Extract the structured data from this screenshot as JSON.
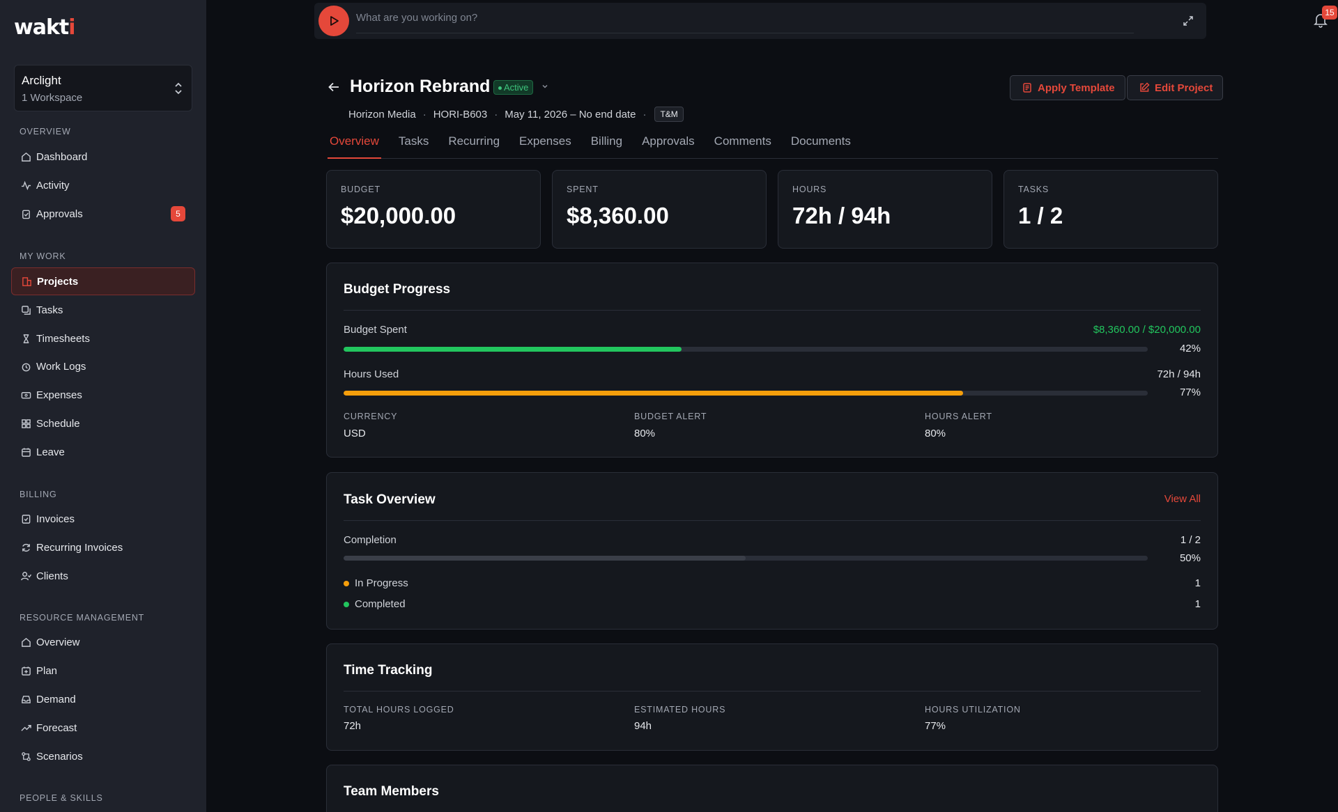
{
  "sidebar": {
    "logo": "wakti",
    "workspace": {
      "name": "Arclight",
      "sub": "1 Workspace"
    },
    "sections": [
      {
        "label": "OVERVIEW"
      },
      {
        "label": "MY WORK"
      },
      {
        "label": "BILLING"
      },
      {
        "label": "RESOURCE MANAGEMENT"
      },
      {
        "label": "PEOPLE & SKILLS"
      }
    ],
    "items": [
      {
        "label": "Dashboard",
        "icon": "home-icon"
      },
      {
        "label": "Activity",
        "icon": "activity-icon"
      },
      {
        "label": "Approvals",
        "icon": "clipboard-check-icon",
        "badge": "5"
      },
      {
        "label": "Projects",
        "icon": "folder-icon",
        "active": true
      },
      {
        "label": "Tasks",
        "icon": "tasks-icon"
      },
      {
        "label": "Timesheets",
        "icon": "hourglass-icon"
      },
      {
        "label": "Work Logs",
        "icon": "clock-icon"
      },
      {
        "label": "Expenses",
        "icon": "receipt-icon"
      },
      {
        "label": "Schedule",
        "icon": "grid-icon"
      },
      {
        "label": "Leave",
        "icon": "calendar-icon"
      },
      {
        "label": "Invoices",
        "icon": "invoice-icon"
      },
      {
        "label": "Recurring Invoices",
        "icon": "refresh-icon"
      },
      {
        "label": "Clients",
        "icon": "users-icon"
      },
      {
        "label": "Overview",
        "icon": "home-icon"
      },
      {
        "label": "Plan",
        "icon": "calendar-plus-icon"
      },
      {
        "label": "Demand",
        "icon": "inbox-icon"
      },
      {
        "label": "Forecast",
        "icon": "trend-up-icon"
      },
      {
        "label": "Scenarios",
        "icon": "branches-icon"
      }
    ]
  },
  "timer": {
    "placeholder": "What are you working on?"
  },
  "notifications": {
    "count": "15"
  },
  "project": {
    "title": "Horizon Rebrand",
    "status": "Active",
    "client": "Horizon Media",
    "code": "HORI-B603",
    "dates": "May 11, 2026 – No end date",
    "billing_type": "T&M"
  },
  "actions": {
    "apply_template": "Apply Template",
    "edit_project": "Edit Project"
  },
  "tabs": [
    "Overview",
    "Tasks",
    "Recurring",
    "Expenses",
    "Billing",
    "Approvals",
    "Comments",
    "Documents"
  ],
  "stats": [
    {
      "label": "BUDGET",
      "value": "$20,000.00"
    },
    {
      "label": "SPENT",
      "value": "$8,360.00"
    },
    {
      "label": "HOURS",
      "value": "72h / 94h"
    },
    {
      "label": "TASKS",
      "value": "1 / 2"
    }
  ],
  "budget_progress": {
    "title": "Budget Progress",
    "budget_spent": {
      "label": "Budget Spent",
      "value": "$8,360.00 / $20,000.00",
      "percent_text": "42%",
      "percent": 42
    },
    "hours_used": {
      "label": "Hours Used",
      "value": "72h / 94h",
      "percent_text": "77%",
      "percent": 77
    },
    "currency": {
      "label": "CURRENCY",
      "value": "USD"
    },
    "budget_alert": {
      "label": "BUDGET ALERT",
      "value": "80%"
    },
    "hours_alert": {
      "label": "HOURS ALERT",
      "value": "80%"
    }
  },
  "task_overview": {
    "title": "Task Overview",
    "view_all": "View All",
    "completion": {
      "label": "Completion",
      "value": "1 / 2",
      "percent_text": "50%",
      "percent": 50
    },
    "in_progress": {
      "label": "In Progress",
      "count": "1"
    },
    "completed": {
      "label": "Completed",
      "count": "1"
    }
  },
  "time_tracking": {
    "title": "Time Tracking",
    "total": {
      "label": "TOTAL HOURS LOGGED",
      "value": "72h"
    },
    "estimated": {
      "label": "ESTIMATED HOURS",
      "value": "94h"
    },
    "utilization": {
      "label": "HOURS UTILIZATION",
      "value": "77%"
    }
  },
  "team_members": {
    "title": "Team Members"
  },
  "colors": {
    "accent": "#e5483a",
    "green": "#22c55e",
    "orange": "#f59e0b",
    "sidebar_bg": "#1f222b",
    "page_bg": "#0c0e13"
  }
}
